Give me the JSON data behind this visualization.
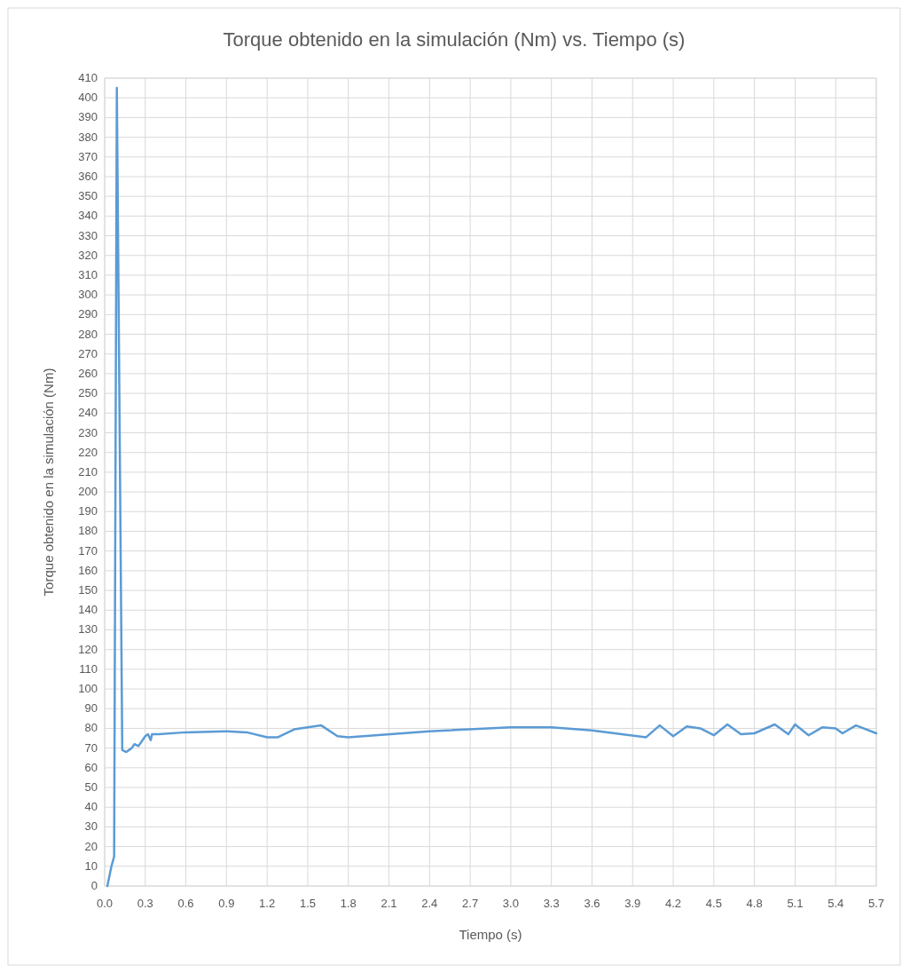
{
  "chart_data": {
    "type": "line",
    "title": "Torque obtenido en la simulación (Nm) vs. Tiempo (s)",
    "xlabel": "Tiempo (s)",
    "ylabel": "Torque obtenido en la simulación (Nm)",
    "xlim": [
      0,
      5.7
    ],
    "xticks": [
      {
        "value": 0,
        "label": "0.0"
      },
      0.3,
      0.6,
      0.9,
      1.2,
      1.5,
      1.8,
      2.1,
      2.4,
      2.7,
      {
        "value": 3,
        "label": "3.0"
      },
      3.3,
      3.6,
      3.9,
      4.2,
      4.5,
      4.8,
      5.1,
      5.4,
      5.7
    ],
    "ylim": [
      0,
      410
    ],
    "yticks": [
      0,
      10,
      20,
      30,
      40,
      50,
      60,
      70,
      80,
      90,
      100,
      110,
      120,
      130,
      140,
      150,
      160,
      170,
      180,
      190,
      200,
      210,
      220,
      230,
      240,
      250,
      260,
      270,
      280,
      290,
      300,
      310,
      320,
      330,
      340,
      350,
      360,
      370,
      380,
      390,
      400,
      410
    ],
    "grid": true,
    "marker": "none",
    "line_style": "solid",
    "series": [
      {
        "color": "#5b9bd5",
        "x": [
          0.02,
          0.05,
          0.07,
          0.09,
          0.13,
          0.16,
          0.2,
          0.22,
          0.25,
          0.3,
          0.32,
          0.34,
          0.35,
          0.4,
          0.6,
          0.9,
          1.05,
          1.2,
          1.28,
          1.4,
          1.5,
          1.6,
          1.72,
          1.8,
          2.4,
          3.0,
          3.3,
          3.6,
          4.0,
          4.1,
          4.2,
          4.3,
          4.4,
          4.5,
          4.6,
          4.7,
          4.8,
          4.95,
          5.05,
          5.1,
          5.2,
          5.3,
          5.4,
          5.45,
          5.55,
          5.7
        ],
        "values": [
          0,
          10,
          15,
          405,
          69,
          68,
          70,
          72,
          71,
          76,
          77,
          74,
          77,
          77,
          78,
          78.5,
          78,
          75.5,
          75.5,
          79.5,
          80.5,
          81.5,
          76,
          75.5,
          78.5,
          80.5,
          80.5,
          79,
          75.5,
          81.5,
          76,
          81,
          80,
          76.5,
          82,
          77,
          77.5,
          82,
          77,
          82,
          76.5,
          80.5,
          80,
          77.5,
          81.5,
          77.5
        ]
      }
    ]
  }
}
